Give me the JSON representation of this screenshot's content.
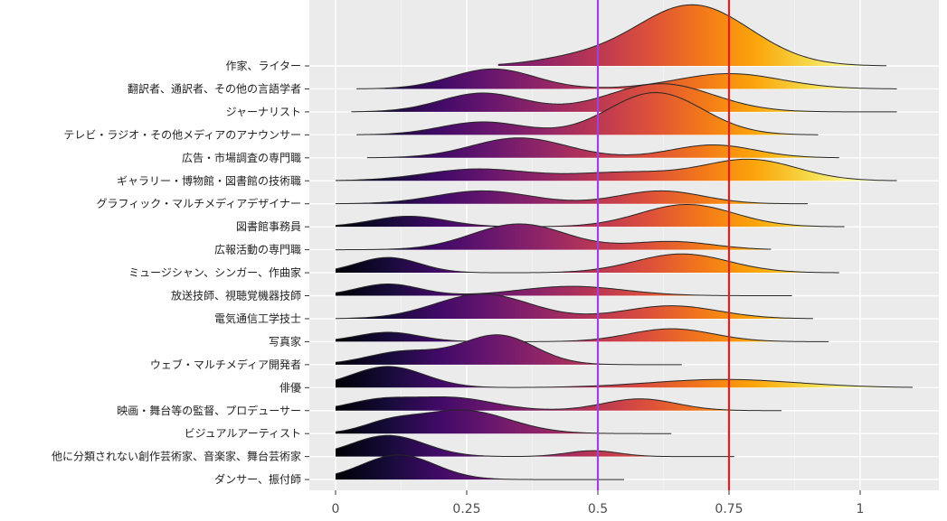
{
  "chart_data": {
    "type": "ridgeline",
    "title": "",
    "xlabel": "",
    "ylabel": "",
    "xlim": [
      -0.05,
      1.15
    ],
    "x_ticks": [
      0,
      0.25,
      0.5,
      0.75,
      1
    ],
    "x_tick_labels": [
      "0",
      "0.25",
      "0.5",
      "0.75",
      "1"
    ],
    "grid": true,
    "legend": "none",
    "fill_scale": "inferno",
    "reference_lines": [
      {
        "x": 0.5,
        "color": "#a040e0"
      },
      {
        "x": 0.75,
        "color": "#e02020"
      }
    ],
    "categories": [
      "作家、ライター",
      "翻訳者、通訳者、その他の言語学者",
      "ジャーナリスト",
      "テレビ・ラジオ・その他メディアのアナウンサー",
      "広告・市場調査の専門職",
      "ギャラリー・博物館・図書館の技術職",
      "グラフィック・マルチメディアデザイナー",
      "図書館事務員",
      "広報活動の専門職",
      "ミュージシャン、シンガー、作曲家",
      "放送技師、視聴覚機器技師",
      "電気通信工学技士",
      "写真家",
      "ウェブ・マルチメディア開発者",
      "俳優",
      "映画・舞台等の監督、プロデューサー",
      "ビジュアルアーティスト",
      "他に分類されない創作芸術家、音楽家、舞台芸術家",
      "ダンサー、振付師"
    ],
    "series": [
      {
        "range": [
          0.31,
          1.05
        ],
        "peaks": [
          {
            "mu": 0.68,
            "sigma": 0.11,
            "h": 2.6
          },
          {
            "mu": 0.45,
            "sigma": 0.08,
            "h": 0.25
          }
        ]
      },
      {
        "range": [
          0.04,
          1.07
        ],
        "peaks": [
          {
            "mu": 0.3,
            "sigma": 0.08,
            "h": 0.85
          },
          {
            "mu": 0.75,
            "sigma": 0.1,
            "h": 0.65
          }
        ]
      },
      {
        "range": [
          0.03,
          1.07
        ],
        "peaks": [
          {
            "mu": 0.28,
            "sigma": 0.08,
            "h": 0.8
          },
          {
            "mu": 0.62,
            "sigma": 0.1,
            "h": 1.2
          }
        ]
      },
      {
        "range": [
          0.04,
          0.92
        ],
        "peaks": [
          {
            "mu": 0.28,
            "sigma": 0.08,
            "h": 0.55
          },
          {
            "mu": 0.61,
            "sigma": 0.09,
            "h": 1.8
          }
        ]
      },
      {
        "range": [
          0.06,
          0.96
        ],
        "peaks": [
          {
            "mu": 0.35,
            "sigma": 0.09,
            "h": 0.85
          },
          {
            "mu": 0.72,
            "sigma": 0.08,
            "h": 0.55
          }
        ]
      },
      {
        "range": [
          0,
          1.07
        ],
        "peaks": [
          {
            "mu": 0.27,
            "sigma": 0.1,
            "h": 0.5
          },
          {
            "mu": 0.55,
            "sigma": 0.1,
            "h": 0.35
          },
          {
            "mu": 0.79,
            "sigma": 0.09,
            "h": 0.9
          }
        ]
      },
      {
        "range": [
          0,
          0.9
        ],
        "peaks": [
          {
            "mu": 0.28,
            "sigma": 0.09,
            "h": 0.55
          },
          {
            "mu": 0.62,
            "sigma": 0.08,
            "h": 0.55
          }
        ]
      },
      {
        "range": [
          0,
          0.97
        ],
        "peaks": [
          {
            "mu": 0.14,
            "sigma": 0.07,
            "h": 0.45
          },
          {
            "mu": 0.67,
            "sigma": 0.09,
            "h": 0.95
          }
        ]
      },
      {
        "range": [
          0,
          0.83
        ],
        "peaks": [
          {
            "mu": 0.35,
            "sigma": 0.09,
            "h": 1.1
          },
          {
            "mu": 0.64,
            "sigma": 0.08,
            "h": 0.35
          }
        ]
      },
      {
        "range": [
          0,
          0.96
        ],
        "peaks": [
          {
            "mu": 0.1,
            "sigma": 0.06,
            "h": 0.65
          },
          {
            "mu": 0.66,
            "sigma": 0.09,
            "h": 0.8
          }
        ]
      },
      {
        "range": [
          0,
          0.87
        ],
        "peaks": [
          {
            "mu": 0.1,
            "sigma": 0.06,
            "h": 0.5
          },
          {
            "mu": 0.45,
            "sigma": 0.1,
            "h": 0.4
          }
        ]
      },
      {
        "range": [
          0,
          0.91
        ],
        "peaks": [
          {
            "mu": 0.28,
            "sigma": 0.09,
            "h": 1.05
          },
          {
            "mu": 0.64,
            "sigma": 0.09,
            "h": 0.55
          }
        ]
      },
      {
        "range": [
          0,
          0.94
        ],
        "peaks": [
          {
            "mu": 0.1,
            "sigma": 0.06,
            "h": 0.4
          },
          {
            "mu": 0.64,
            "sigma": 0.08,
            "h": 0.55
          }
        ]
      },
      {
        "range": [
          0,
          0.66
        ],
        "peaks": [
          {
            "mu": 0.13,
            "sigma": 0.07,
            "h": 0.55
          },
          {
            "mu": 0.31,
            "sigma": 0.07,
            "h": 1.25
          }
        ]
      },
      {
        "range": [
          0,
          1.1
        ],
        "peaks": [
          {
            "mu": 0.1,
            "sigma": 0.07,
            "h": 0.9
          },
          {
            "mu": 0.74,
            "sigma": 0.14,
            "h": 0.35
          }
        ]
      },
      {
        "range": [
          0,
          0.85
        ],
        "peaks": [
          {
            "mu": 0.08,
            "sigma": 0.06,
            "h": 0.4
          },
          {
            "mu": 0.22,
            "sigma": 0.08,
            "h": 0.55
          },
          {
            "mu": 0.58,
            "sigma": 0.07,
            "h": 0.5
          }
        ]
      },
      {
        "range": [
          0,
          0.64
        ],
        "peaks": [
          {
            "mu": 0.24,
            "sigma": 0.09,
            "h": 1.0
          },
          {
            "mu": 0.1,
            "sigma": 0.05,
            "h": 0.35
          }
        ]
      },
      {
        "range": [
          0,
          0.76
        ],
        "peaks": [
          {
            "mu": 0.1,
            "sigma": 0.07,
            "h": 0.9
          },
          {
            "mu": 0.49,
            "sigma": 0.05,
            "h": 0.25
          }
        ]
      },
      {
        "range": [
          0,
          0.55
        ],
        "peaks": [
          {
            "mu": 0.12,
            "sigma": 0.07,
            "h": 1.05
          }
        ]
      }
    ]
  }
}
